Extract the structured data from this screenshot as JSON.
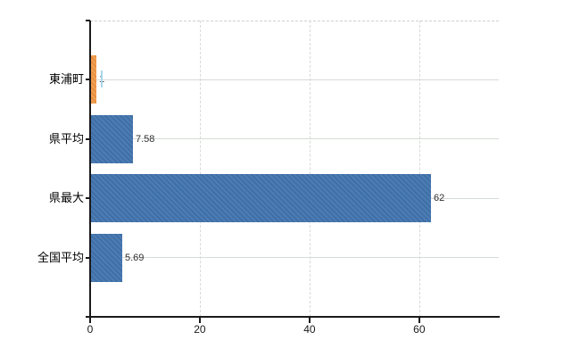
{
  "chart_data": {
    "type": "bar",
    "orientation": "horizontal",
    "title": "",
    "categories": [
      "東浦町",
      "県平均",
      "県最大",
      "全国平均"
    ],
    "values": [
      1,
      7.58,
      62,
      5.69
    ],
    "value_labels": [
      "1",
      "7.58",
      "62",
      "5.69"
    ],
    "series_colors": [
      "orange",
      "blue",
      "blue",
      "blue"
    ],
    "x_ticks": [
      0,
      20,
      40,
      60
    ],
    "x_tick_labels": [
      "0",
      "20",
      "40",
      "60"
    ],
    "xlim": [
      0,
      74.5
    ],
    "grid": true,
    "legend": false,
    "ylabel": "",
    "xlabel": ""
  },
  "colors": {
    "background": "#ffffff",
    "axis": "#1a1a1a",
    "grid_horizontal": "#d5dcd5",
    "grid_vertical": "#d8d8d8",
    "plot_top_border": "#d0d0d0",
    "bar_blue": "#3e6fa6",
    "bar_blue_light": "#4d7cb3",
    "bar_orange": "#e8903f",
    "bar_orange_light": "#f2a055",
    "value_label": "#303030",
    "category_label": "#000000",
    "tick_label": "#1a1a1a",
    "cursor_artifact": "#a9d7ea"
  }
}
